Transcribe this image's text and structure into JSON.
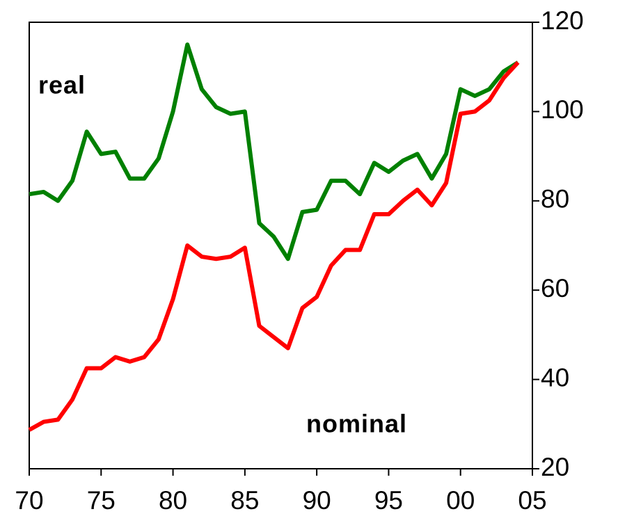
{
  "chart_data": {
    "type": "line",
    "x": [
      1970,
      1971,
      1972,
      1973,
      1974,
      1975,
      1976,
      1977,
      1978,
      1979,
      1980,
      1981,
      1982,
      1983,
      1984,
      1985,
      1986,
      1987,
      1988,
      1989,
      1990,
      1991,
      1992,
      1993,
      1994,
      1995,
      1996,
      1997,
      1998,
      1999,
      2000,
      2001,
      2002,
      2003,
      2004
    ],
    "series": [
      {
        "name": "real",
        "color": "#008000",
        "values": [
          81.5,
          82,
          80,
          84.5,
          95.5,
          90.5,
          91,
          85,
          85,
          89.5,
          100,
          115,
          105,
          101,
          99.5,
          100,
          75,
          72,
          67,
          77.5,
          78,
          84.5,
          84.5,
          81.5,
          88.5,
          86.5,
          89,
          90.5,
          85,
          90.5,
          105,
          103.5,
          105,
          109,
          111
        ]
      },
      {
        "name": "nominal",
        "color": "#ff0000",
        "values": [
          28.7,
          30.5,
          31,
          35.5,
          42.5,
          42.5,
          45,
          44,
          45,
          49,
          58,
          70,
          67.5,
          67,
          67.5,
          69.5,
          52,
          49.5,
          47,
          56,
          58.5,
          65.5,
          69,
          69,
          77,
          77,
          80,
          82.5,
          79,
          84,
          99.5,
          100,
          102.5,
          107.5,
          111
        ]
      }
    ],
    "xlim": [
      1970,
      2005
    ],
    "xticks": [
      {
        "value": 1970,
        "label": "70"
      },
      {
        "value": 1975,
        "label": "75"
      },
      {
        "value": 1980,
        "label": "80"
      },
      {
        "value": 1985,
        "label": "85"
      },
      {
        "value": 1990,
        "label": "90"
      },
      {
        "value": 1995,
        "label": "95"
      },
      {
        "value": 2000,
        "label": "00"
      },
      {
        "value": 2005,
        "label": "05"
      }
    ],
    "ylim": [
      20,
      120
    ],
    "yticks": [
      20,
      40,
      60,
      80,
      100,
      120
    ],
    "y_axis_side": "right",
    "grid": false
  }
}
